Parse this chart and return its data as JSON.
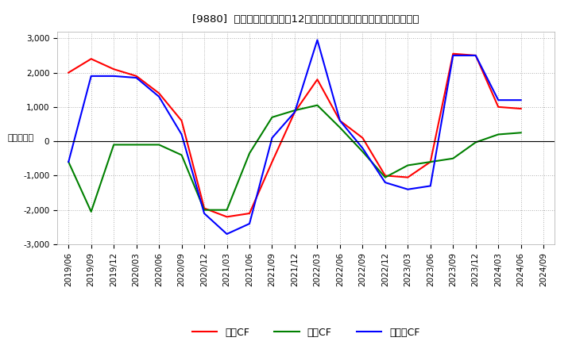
{
  "title": "[9880]  キャッシュフローの12か月移動合計の対前年同期増減額の推移",
  "ylabel": "（百万円）",
  "x_labels": [
    "2019/06",
    "2019/09",
    "2019/12",
    "2020/03",
    "2020/06",
    "2020/09",
    "2020/12",
    "2021/03",
    "2021/06",
    "2021/09",
    "2021/12",
    "2022/03",
    "2022/06",
    "2022/09",
    "2022/12",
    "2023/03",
    "2023/06",
    "2023/09",
    "2023/12",
    "2024/03",
    "2024/06",
    "2024/09"
  ],
  "operating_cf": [
    2000,
    2400,
    2100,
    1900,
    1400,
    600,
    -1950,
    -2200,
    -2100,
    -600,
    850,
    1800,
    600,
    100,
    -1000,
    -1050,
    -600,
    2550,
    2500,
    1000,
    950,
    null
  ],
  "investing_cf": [
    -600,
    -2050,
    -100,
    -100,
    -100,
    -400,
    -2000,
    -2000,
    -350,
    700,
    900,
    1050,
    400,
    -300,
    -1050,
    -700,
    -600,
    -500,
    -30,
    200,
    250,
    null
  ],
  "free_cf": [
    -600,
    1900,
    1900,
    1850,
    1300,
    200,
    -2100,
    -2700,
    -2400,
    100,
    850,
    2950,
    600,
    -200,
    -1200,
    -1400,
    -1300,
    2500,
    2500,
    1200,
    1200,
    null
  ],
  "ylim": [
    -3000,
    3200
  ],
  "yticks": [
    -3000,
    -2000,
    -1000,
    0,
    1000,
    2000,
    3000
  ],
  "operating_color": "#ff0000",
  "investing_color": "#008000",
  "free_color": "#0000ff",
  "background_color": "#ffffff",
  "grid_color": "#999999",
  "legend_labels": [
    "営業CF",
    "投資CF",
    "フリーCF"
  ]
}
